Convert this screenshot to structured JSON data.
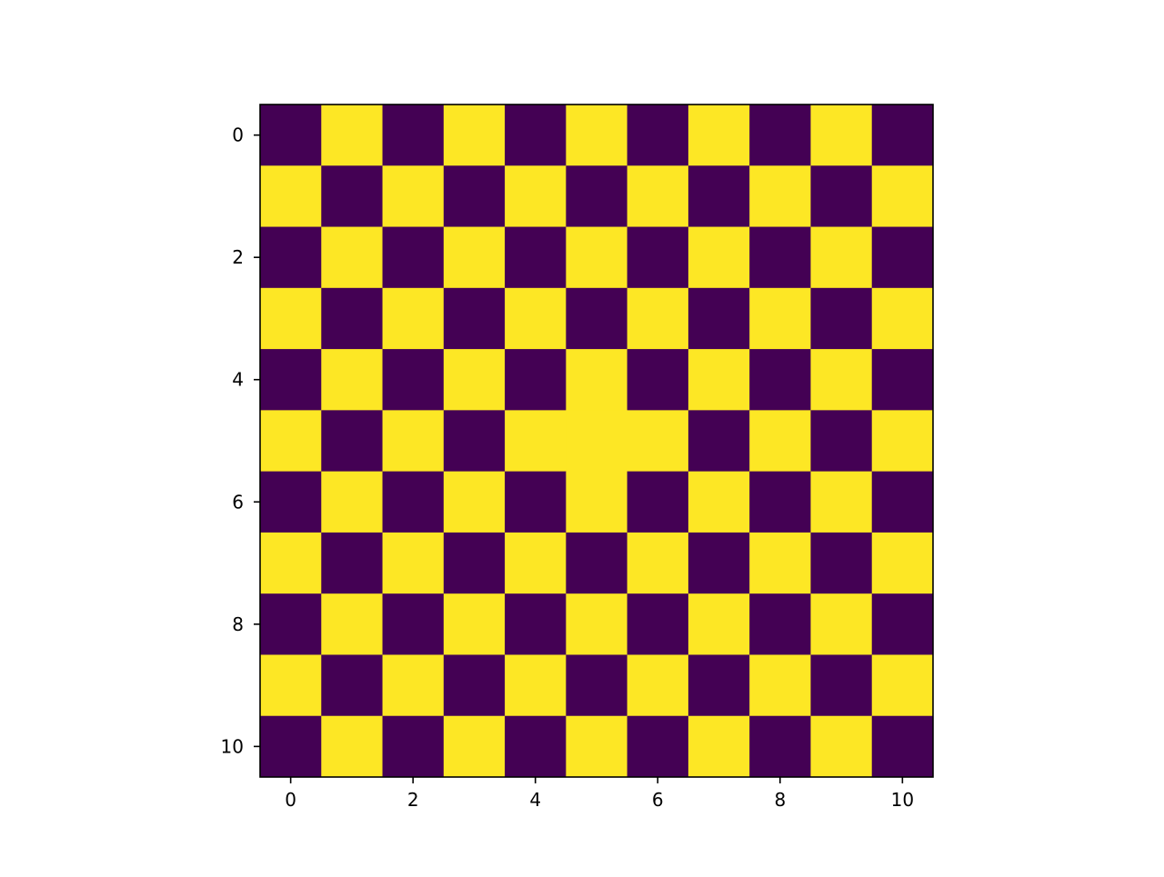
{
  "chart_data": {
    "type": "heatmap",
    "title": "",
    "xlabel": "",
    "ylabel": "",
    "x_ticks": [
      "0",
      "2",
      "4",
      "6",
      "8",
      "10"
    ],
    "y_ticks": [
      "0",
      "2",
      "4",
      "6",
      "8",
      "10"
    ],
    "x_tick_values": [
      0,
      2,
      4,
      6,
      8,
      10
    ],
    "y_tick_values": [
      0,
      2,
      4,
      6,
      8,
      10
    ],
    "xlim": [
      -0.5,
      10.5
    ],
    "ylim": [
      10.5,
      -0.5
    ],
    "grid": false,
    "colormap": {
      "0": "#440154",
      "1": "#fde725"
    },
    "matrix": [
      [
        0,
        1,
        0,
        1,
        0,
        1,
        0,
        1,
        0,
        1,
        0
      ],
      [
        1,
        0,
        1,
        0,
        1,
        0,
        1,
        0,
        1,
        0,
        1
      ],
      [
        0,
        1,
        0,
        1,
        0,
        1,
        0,
        1,
        0,
        1,
        0
      ],
      [
        1,
        0,
        1,
        0,
        1,
        0,
        1,
        0,
        1,
        0,
        1
      ],
      [
        0,
        1,
        0,
        1,
        0,
        1,
        0,
        1,
        0,
        1,
        0
      ],
      [
        1,
        0,
        1,
        0,
        1,
        1,
        1,
        0,
        1,
        0,
        1
      ],
      [
        0,
        1,
        0,
        1,
        0,
        1,
        0,
        1,
        0,
        1,
        0
      ],
      [
        1,
        0,
        1,
        0,
        1,
        0,
        1,
        0,
        1,
        0,
        1
      ],
      [
        0,
        1,
        0,
        1,
        0,
        1,
        0,
        1,
        0,
        1,
        0
      ],
      [
        1,
        0,
        1,
        0,
        1,
        0,
        1,
        0,
        1,
        0,
        1
      ],
      [
        0,
        1,
        0,
        1,
        0,
        1,
        0,
        1,
        0,
        1,
        0
      ]
    ]
  }
}
